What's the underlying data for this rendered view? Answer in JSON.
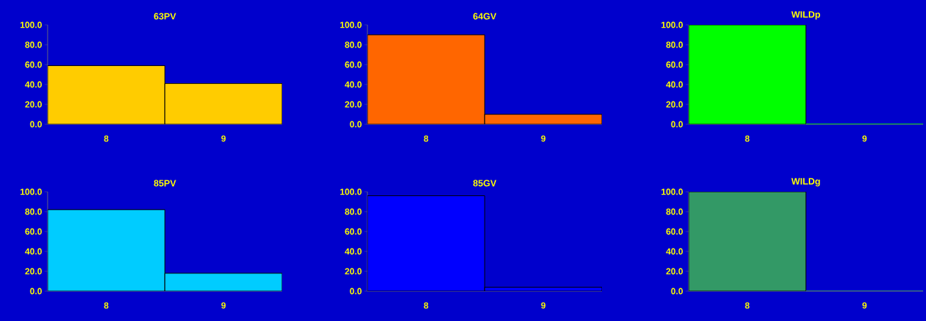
{
  "chart_data": [
    {
      "type": "bar",
      "title": "63PV",
      "categories": [
        "8",
        "9"
      ],
      "values": [
        59,
        41
      ],
      "color": "#ffcc00",
      "ylim": [
        0,
        100
      ],
      "yticks": [
        {
          "value": 0,
          "label": "0.0"
        },
        {
          "value": 20,
          "label": "20.0"
        },
        {
          "value": 40,
          "label": "40.0"
        },
        {
          "value": 60,
          "label": "60.0"
        },
        {
          "value": 80,
          "label": "80.0"
        },
        {
          "value": 100,
          "label": "100.0"
        }
      ],
      "grid": false
    },
    {
      "type": "bar",
      "title": "64GV",
      "categories": [
        "8",
        "9"
      ],
      "values": [
        90,
        10
      ],
      "color": "#ff6600",
      "ylim": [
        0,
        100
      ],
      "yticks": [
        {
          "value": 0,
          "label": "0.0"
        },
        {
          "value": 20,
          "label": "20.0"
        },
        {
          "value": 40,
          "label": "40.0"
        },
        {
          "value": 60,
          "label": "60.0"
        },
        {
          "value": 80,
          "label": "80.0"
        },
        {
          "value": 100,
          "label": "100.0"
        }
      ],
      "grid": false
    },
    {
      "type": "bar",
      "title": "WILDp",
      "categories": [
        "8",
        "9"
      ],
      "values": [
        100,
        0
      ],
      "color": "#00ff00",
      "ylim": [
        0,
        100
      ],
      "yticks": [
        {
          "value": 0,
          "label": "0.0"
        },
        {
          "value": 20,
          "label": "20.0"
        },
        {
          "value": 40,
          "label": "40.0"
        },
        {
          "value": 60,
          "label": "60.0"
        },
        {
          "value": 80,
          "label": "80.0"
        },
        {
          "value": 100,
          "label": "100.0"
        }
      ],
      "grid": false
    },
    {
      "type": "bar",
      "title": "85PV",
      "categories": [
        "8",
        "9"
      ],
      "values": [
        82,
        18
      ],
      "color": "#00ccff",
      "ylim": [
        0,
        100
      ],
      "yticks": [
        {
          "value": 0,
          "label": "0.0"
        },
        {
          "value": 20,
          "label": "20.0"
        },
        {
          "value": 40,
          "label": "40.0"
        },
        {
          "value": 60,
          "label": "60.0"
        },
        {
          "value": 80,
          "label": "80.0"
        },
        {
          "value": 100,
          "label": "100.0"
        }
      ],
      "grid": false
    },
    {
      "type": "bar",
      "title": "85GV",
      "categories": [
        "8",
        "9"
      ],
      "values": [
        96,
        4
      ],
      "color": "#0000ff",
      "ylim": [
        0,
        100
      ],
      "yticks": [
        {
          "value": 0,
          "label": "0.0"
        },
        {
          "value": 20,
          "label": "20.0"
        },
        {
          "value": 40,
          "label": "40.0"
        },
        {
          "value": 60,
          "label": "60.0"
        },
        {
          "value": 80,
          "label": "80.0"
        },
        {
          "value": 100,
          "label": "100.0"
        }
      ],
      "grid": false
    },
    {
      "type": "bar",
      "title": "WILDg",
      "categories": [
        "8",
        "9"
      ],
      "values": [
        100,
        0
      ],
      "color": "#339966",
      "ylim": [
        0,
        100
      ],
      "yticks": [
        {
          "value": 0,
          "label": "0.0"
        },
        {
          "value": 20,
          "label": "20.0"
        },
        {
          "value": 40,
          "label": "40.0"
        },
        {
          "value": 60,
          "label": "60.0"
        },
        {
          "value": 80,
          "label": "80.0"
        },
        {
          "value": 100,
          "label": "100.0"
        }
      ],
      "grid": false
    }
  ]
}
